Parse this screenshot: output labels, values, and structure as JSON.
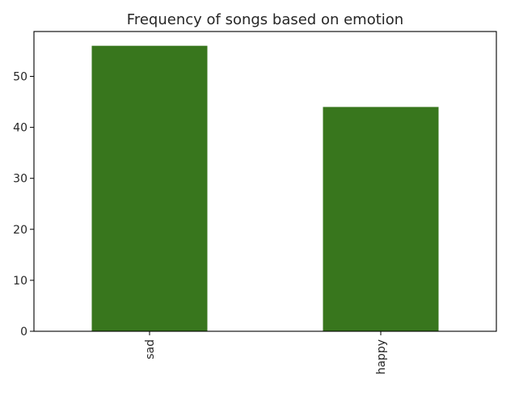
{
  "chart_data": {
    "type": "bar",
    "title": "Frequency of songs based on emotion",
    "categories": [
      "sad",
      "happy"
    ],
    "values": [
      56,
      44
    ],
    "xlabel": "",
    "ylabel": "",
    "ylim": [
      0,
      58.8
    ],
    "yticks": [
      0,
      10,
      20,
      30,
      40,
      50
    ],
    "grid": false,
    "legend": "none",
    "bar_color": "#38761d",
    "axis_color": "#000000",
    "text_color": "#262626",
    "x_tick_rotation": "vertical"
  }
}
